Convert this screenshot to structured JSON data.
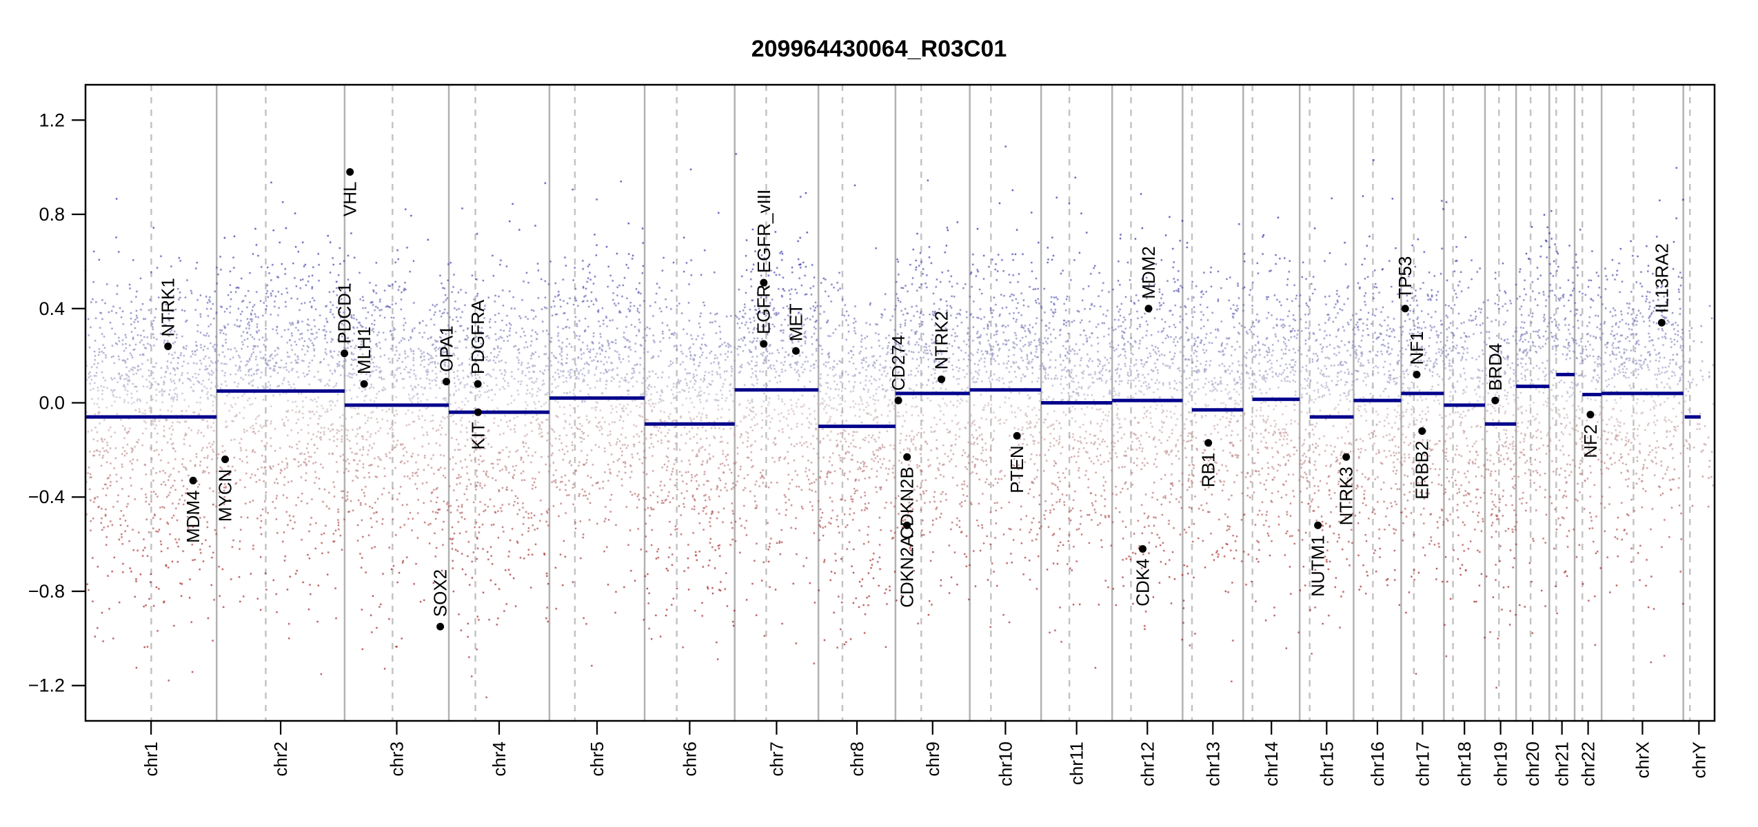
{
  "title": "209964430064_R03C01",
  "chart_data": {
    "type": "scatter",
    "title": "209964430064_R03C01",
    "subtitle": "",
    "grid": "chromosome boundaries (solid) and centromeres (dashed)",
    "legend_position": "none",
    "y_axis": {
      "label": "",
      "tick_labels": [
        "1.2",
        "0.8",
        "0.4",
        "0.0",
        "−0.4",
        "−0.8",
        "−1.2"
      ],
      "tick_values": [
        1.2,
        0.8,
        0.4,
        0.0,
        -0.4,
        -0.8,
        -1.2
      ],
      "lim": [
        -1.35,
        1.35
      ]
    },
    "x_axis": {
      "label": "",
      "tick_labels": [
        "chr1",
        "chr2",
        "chr3",
        "chr4",
        "chr5",
        "chr6",
        "chr7",
        "chr8",
        "chr9",
        "chr10",
        "chr11",
        "chr12",
        "chr13",
        "chr14",
        "chr15",
        "chr16",
        "chr17",
        "chr18",
        "chr19",
        "chr20",
        "chr21",
        "chr22",
        "chrX",
        "chrY"
      ]
    },
    "chromosomes": [
      {
        "name": "chr1",
        "length_mb": 249.25,
        "centromere_mb": 125.0,
        "segment": {
          "value": -0.06,
          "start_mb": 0,
          "end_mb": 249.25
        }
      },
      {
        "name": "chr2",
        "length_mb": 243.2,
        "centromere_mb": 93.3,
        "segment": {
          "value": 0.05,
          "start_mb": 0,
          "end_mb": 243.2
        }
      },
      {
        "name": "chr3",
        "length_mb": 198.02,
        "centromere_mb": 91.0,
        "segment": {
          "value": -0.01,
          "start_mb": 0,
          "end_mb": 198.02
        }
      },
      {
        "name": "chr4",
        "length_mb": 191.15,
        "centromere_mb": 50.4,
        "segment": {
          "value": -0.04,
          "start_mb": 0,
          "end_mb": 191.15
        }
      },
      {
        "name": "chr5",
        "length_mb": 180.92,
        "centromere_mb": 48.4,
        "segment": {
          "value": 0.02,
          "start_mb": 0,
          "end_mb": 180.92
        }
      },
      {
        "name": "chr6",
        "length_mb": 171.12,
        "centromere_mb": 61.0,
        "segment": {
          "value": -0.09,
          "start_mb": 0,
          "end_mb": 171.12
        }
      },
      {
        "name": "chr7",
        "length_mb": 159.14,
        "centromere_mb": 59.9,
        "segment": {
          "value": 0.055,
          "start_mb": 0,
          "end_mb": 159.14
        }
      },
      {
        "name": "chr8",
        "length_mb": 146.36,
        "centromere_mb": 45.6,
        "segment": {
          "value": -0.1,
          "start_mb": 0,
          "end_mb": 146.36
        }
      },
      {
        "name": "chr9",
        "length_mb": 141.21,
        "centromere_mb": 49.0,
        "segment": {
          "value": 0.04,
          "start_mb": 0,
          "end_mb": 141.21
        }
      },
      {
        "name": "chr10",
        "length_mb": 135.53,
        "centromere_mb": 40.2,
        "segment": {
          "value": 0.055,
          "start_mb": 0,
          "end_mb": 135.53
        }
      },
      {
        "name": "chr11",
        "length_mb": 135.01,
        "centromere_mb": 53.7,
        "segment": {
          "value": 0.0,
          "start_mb": 0,
          "end_mb": 135.01
        }
      },
      {
        "name": "chr12",
        "length_mb": 133.85,
        "centromere_mb": 35.8,
        "segment": {
          "value": 0.01,
          "start_mb": 0,
          "end_mb": 133.85
        }
      },
      {
        "name": "chr13",
        "length_mb": 115.17,
        "centromere_mb": 17.9,
        "segment": {
          "value": -0.03,
          "start_mb": 17.9,
          "end_mb": 115.17
        }
      },
      {
        "name": "chr14",
        "length_mb": 107.35,
        "centromere_mb": 17.6,
        "segment": {
          "value": 0.015,
          "start_mb": 17.6,
          "end_mb": 107.35
        }
      },
      {
        "name": "chr15",
        "length_mb": 102.53,
        "centromere_mb": 19.0,
        "segment": {
          "value": -0.06,
          "start_mb": 19.0,
          "end_mb": 102.53
        }
      },
      {
        "name": "chr16",
        "length_mb": 90.35,
        "centromere_mb": 36.6,
        "segment": {
          "value": 0.01,
          "start_mb": 0,
          "end_mb": 90.35
        }
      },
      {
        "name": "chr17",
        "length_mb": 81.2,
        "centromere_mb": 24.0,
        "segment": {
          "value": 0.04,
          "start_mb": 0,
          "end_mb": 81.2
        }
      },
      {
        "name": "chr18",
        "length_mb": 78.08,
        "centromere_mb": 17.2,
        "segment": {
          "value": -0.01,
          "start_mb": 0,
          "end_mb": 78.08
        }
      },
      {
        "name": "chr19",
        "length_mb": 59.13,
        "centromere_mb": 26.5,
        "segment": {
          "value": -0.09,
          "start_mb": 0,
          "end_mb": 59.13
        }
      },
      {
        "name": "chr20",
        "length_mb": 63.03,
        "centromere_mb": 27.5,
        "segment": {
          "value": 0.07,
          "start_mb": 0,
          "end_mb": 63.03
        }
      },
      {
        "name": "chr21",
        "length_mb": 48.13,
        "centromere_mb": 13.2,
        "segment": {
          "value": 0.12,
          "start_mb": 13.2,
          "end_mb": 48.13
        }
      },
      {
        "name": "chr22",
        "length_mb": 51.3,
        "centromere_mb": 14.7,
        "segment": {
          "value": 0.035,
          "start_mb": 14.7,
          "end_mb": 51.3
        }
      },
      {
        "name": "chrX",
        "length_mb": 155.27,
        "centromere_mb": 60.6,
        "segment": {
          "value": 0.04,
          "start_mb": 0,
          "end_mb": 155.27
        }
      },
      {
        "name": "chrY",
        "length_mb": 59.37,
        "centromere_mb": 12.5,
        "segment": {
          "value": -0.06,
          "start_mb": 2.6,
          "end_mb": 33.0
        }
      }
    ],
    "genes": [
      {
        "name": "NTRK1",
        "chrom": "chr1",
        "pos_mb": 156.8,
        "value": 0.24,
        "label_side": "above"
      },
      {
        "name": "MDM4",
        "chrom": "chr1",
        "pos_mb": 204.5,
        "value": -0.33,
        "label_side": "below"
      },
      {
        "name": "MYCN",
        "chrom": "chr2",
        "pos_mb": 16.1,
        "value": -0.24,
        "label_side": "below"
      },
      {
        "name": "PDCD1",
        "chrom": "chr2",
        "pos_mb": 242.8,
        "value": 0.21,
        "label_side": "above"
      },
      {
        "name": "VHL",
        "chrom": "chr3",
        "pos_mb": 10.2,
        "value": 0.98,
        "label_side": "below"
      },
      {
        "name": "MLH1",
        "chrom": "chr3",
        "pos_mb": 37.0,
        "value": 0.08,
        "label_side": "above"
      },
      {
        "name": "OPA1",
        "chrom": "chr3",
        "pos_mb": 193.3,
        "value": 0.09,
        "label_side": "above"
      },
      {
        "name": "SOX2",
        "chrom": "chr3",
        "pos_mb": 181.7,
        "value": -0.95,
        "label_side": "above"
      },
      {
        "name": "PDGFRA",
        "chrom": "chr4",
        "pos_mb": 55.1,
        "value": 0.08,
        "label_side": "above"
      },
      {
        "name": "KIT",
        "chrom": "chr4",
        "pos_mb": 55.5,
        "value": -0.04,
        "label_side": "below"
      },
      {
        "name": "EGFR",
        "chrom": "chr7",
        "pos_mb": 55.1,
        "value": 0.25,
        "label_side": "above"
      },
      {
        "name": "EGFR_vIII",
        "chrom": "chr7",
        "pos_mb": 55.2,
        "value": 0.51,
        "label_side": "above"
      },
      {
        "name": "MET",
        "chrom": "chr7",
        "pos_mb": 116.3,
        "value": 0.22,
        "label_side": "above"
      },
      {
        "name": "CD274",
        "chrom": "chr9",
        "pos_mb": 5.5,
        "value": 0.01,
        "label_side": "above"
      },
      {
        "name": "CDKN2A",
        "chrom": "chr9",
        "pos_mb": 21.9,
        "value": -0.52,
        "label_side": "below"
      },
      {
        "name": "CDKN2B",
        "chrom": "chr9",
        "pos_mb": 22.0,
        "value": -0.23,
        "label_side": "below"
      },
      {
        "name": "NTRK2",
        "chrom": "chr9",
        "pos_mb": 87.3,
        "value": 0.1,
        "label_side": "above"
      },
      {
        "name": "PTEN",
        "chrom": "chr10",
        "pos_mb": 89.7,
        "value": -0.14,
        "label_side": "below"
      },
      {
        "name": "CDK4",
        "chrom": "chr12",
        "pos_mb": 58.1,
        "value": -0.62,
        "label_side": "below"
      },
      {
        "name": "MDM2",
        "chrom": "chr12",
        "pos_mb": 69.2,
        "value": 0.4,
        "label_side": "above"
      },
      {
        "name": "RB1",
        "chrom": "chr13",
        "pos_mb": 48.9,
        "value": -0.17,
        "label_side": "below"
      },
      {
        "name": "NUTM1",
        "chrom": "chr15",
        "pos_mb": 34.6,
        "value": -0.52,
        "label_side": "below"
      },
      {
        "name": "NTRK3",
        "chrom": "chr15",
        "pos_mb": 88.4,
        "value": -0.23,
        "label_side": "below"
      },
      {
        "name": "TP53",
        "chrom": "chr17",
        "pos_mb": 7.6,
        "value": 0.4,
        "label_side": "above"
      },
      {
        "name": "NF1",
        "chrom": "chr17",
        "pos_mb": 29.5,
        "value": 0.12,
        "label_side": "above"
      },
      {
        "name": "ERBB2",
        "chrom": "chr17",
        "pos_mb": 39.7,
        "value": -0.12,
        "label_side": "below"
      },
      {
        "name": "BRD4",
        "chrom": "chr19",
        "pos_mb": 19.4,
        "value": 0.01,
        "label_side": "above"
      },
      {
        "name": "NF2",
        "chrom": "chr22",
        "pos_mb": 30.0,
        "value": -0.05,
        "label_side": "below"
      },
      {
        "name": "IL13RA2",
        "chrom": "chrX",
        "pos_mb": 114.2,
        "value": 0.34,
        "label_side": "above"
      }
    ],
    "scatter_generation": {
      "seed": 1234,
      "points_per_mb": 3.8,
      "chrY_density_factor": 0.25,
      "clip_low": -1.25,
      "clip_high": 1.32
    },
    "colors": {
      "segment": "#00008B",
      "gain_point": "#1c1c9e",
      "loss_point": "#9e1818",
      "neutral_point": "#bcbccb",
      "gene_marker": "#000000",
      "boundary_line": "#b2b2b2",
      "centromere_line": "#c3c3c3",
      "axis": "#000000"
    }
  }
}
